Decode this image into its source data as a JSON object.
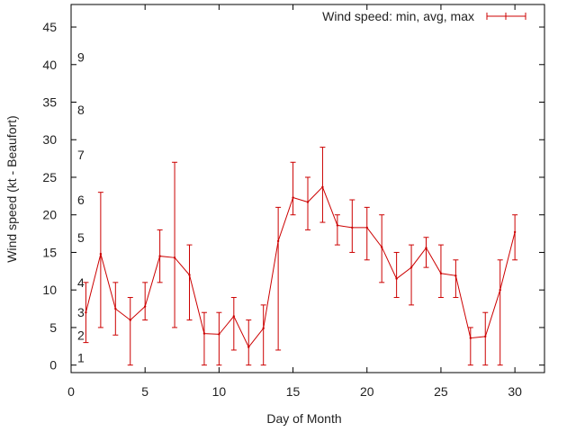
{
  "chart_data": {
    "type": "line",
    "xlabel": "Day of Month",
    "ylabel": "Wind speed (kt - Beaufort)",
    "xlim": [
      0,
      32
    ],
    "ylim": [
      -1,
      48
    ],
    "xticks": [
      "0",
      "5",
      "10",
      "15",
      "20",
      "25",
      "30"
    ],
    "yticks": [
      "0",
      "5",
      "10",
      "15",
      "20",
      "25",
      "30",
      "35",
      "40",
      "45"
    ],
    "beaufort_scale": [
      {
        "label": "1",
        "y": 1
      },
      {
        "label": "2",
        "y": 4
      },
      {
        "label": "3",
        "y": 7
      },
      {
        "label": "4",
        "y": 11
      },
      {
        "label": "5",
        "y": 17
      },
      {
        "label": "6",
        "y": 22
      },
      {
        "label": "7",
        "y": 28
      },
      {
        "label": "8",
        "y": 34
      },
      {
        "label": "9",
        "y": 41
      }
    ],
    "grid": false,
    "legend_position": "top-right",
    "series": [
      {
        "name": "Wind speed: min, avg, max",
        "color": "#cc0000",
        "x": [
          1,
          2,
          3,
          4,
          5,
          6,
          7,
          8,
          9,
          10,
          11,
          12,
          13,
          14,
          15,
          16,
          17,
          18,
          19,
          20,
          21,
          22,
          23,
          24,
          25,
          26,
          27,
          28,
          29,
          30
        ],
        "avg": [
          7,
          14.8,
          7.5,
          6,
          7.8,
          14.5,
          14.3,
          12,
          4.2,
          4.1,
          6.5,
          2.4,
          4.9,
          16.5,
          22.3,
          21.7,
          23.7,
          18.6,
          18.3,
          18.3,
          15.7,
          11.5,
          13,
          15.6,
          12.2,
          11.9,
          3.6,
          3.8,
          10,
          17.7
        ],
        "min": [
          3,
          5,
          4,
          0,
          6,
          11,
          5,
          6,
          0,
          0,
          2,
          0,
          0,
          2,
          20,
          18,
          19,
          16,
          15,
          14,
          11,
          9,
          8,
          13,
          9,
          9,
          0,
          0,
          0,
          14
        ],
        "max": [
          11,
          23,
          11,
          9,
          11,
          18,
          27,
          16,
          7,
          7,
          9,
          6,
          8,
          21,
          27,
          25,
          29,
          20,
          22,
          21,
          20,
          15,
          16,
          17,
          16,
          14,
          5,
          7,
          14,
          20
        ]
      }
    ]
  }
}
